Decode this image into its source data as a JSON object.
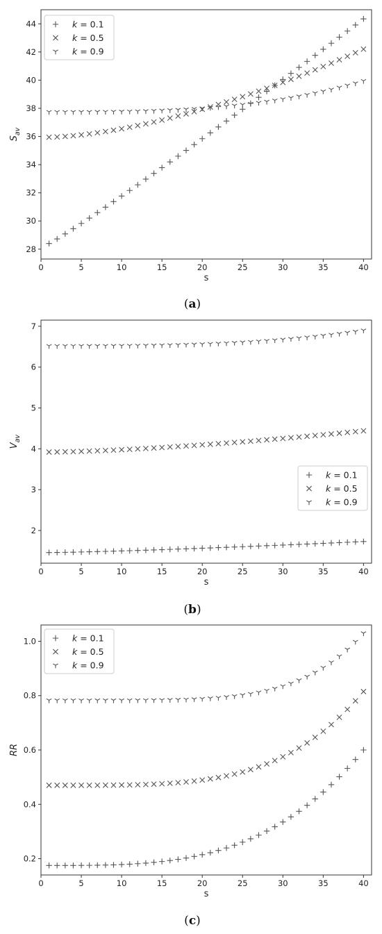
{
  "chart_data": [
    {
      "type": "scatter",
      "panel": "a",
      "caption_open": "(",
      "caption_letter": "a",
      "caption_close": ")",
      "xlabel": "s",
      "ylabel_main": "S",
      "ylabel_sub": "av",
      "xlim": [
        0,
        41
      ],
      "ylim": [
        27.3,
        45.0
      ],
      "xticks": [
        0,
        5,
        10,
        15,
        20,
        25,
        30,
        35,
        40
      ],
      "yticks": [
        28,
        30,
        32,
        34,
        36,
        38,
        40,
        42,
        44
      ],
      "yprecision": 0,
      "legend_position": "upper-left",
      "x": [
        1,
        2,
        3,
        4,
        5,
        6,
        7,
        8,
        9,
        10,
        11,
        12,
        13,
        14,
        15,
        16,
        17,
        18,
        19,
        20,
        21,
        22,
        23,
        24,
        25,
        26,
        27,
        28,
        29,
        30,
        31,
        32,
        33,
        34,
        35,
        36,
        37,
        38,
        39,
        40
      ],
      "series": [
        {
          "k_label": "k",
          "k_value": "= 0.1",
          "marker": "plus",
          "curve": {
            "start": 28.4,
            "end": 44.35,
            "power": 1.06
          }
        },
        {
          "k_label": "k",
          "k_value": "= 0.5",
          "marker": "x",
          "curve": {
            "start": 35.95,
            "end": 42.2,
            "power": 1.6
          }
        },
        {
          "k_label": "k",
          "k_value": "= 0.9",
          "marker": "tri",
          "curve": {
            "start": 37.75,
            "end": 39.95,
            "power": 3.0
          }
        }
      ]
    },
    {
      "type": "scatter",
      "panel": "b",
      "caption_open": "(",
      "caption_letter": "b",
      "caption_close": ")",
      "xlabel": "s",
      "ylabel_main": "V",
      "ylabel_sub": "av",
      "xlim": [
        0,
        41
      ],
      "ylim": [
        1.2,
        7.15
      ],
      "xticks": [
        0,
        5,
        10,
        15,
        20,
        25,
        30,
        35,
        40
      ],
      "yticks": [
        2,
        3,
        4,
        5,
        6,
        7
      ],
      "yprecision": 0,
      "legend_position": "center-right",
      "x": [
        1,
        2,
        3,
        4,
        5,
        6,
        7,
        8,
        9,
        10,
        11,
        12,
        13,
        14,
        15,
        16,
        17,
        18,
        19,
        20,
        21,
        22,
        23,
        24,
        25,
        26,
        27,
        28,
        29,
        30,
        31,
        32,
        33,
        34,
        35,
        36,
        37,
        38,
        39,
        40
      ],
      "series": [
        {
          "k_label": "k",
          "k_value": "= 0.1",
          "marker": "plus",
          "curve": {
            "start": 1.46,
            "end": 1.73,
            "power": 1.3
          }
        },
        {
          "k_label": "k",
          "k_value": "= 0.5",
          "marker": "x",
          "curve": {
            "start": 3.92,
            "end": 4.44,
            "power": 1.5
          }
        },
        {
          "k_label": "k",
          "k_value": "= 0.9",
          "marker": "tri",
          "curve": {
            "start": 6.52,
            "end": 6.9,
            "power": 3.0
          }
        }
      ]
    },
    {
      "type": "scatter",
      "panel": "c",
      "caption_open": "(",
      "caption_letter": "c",
      "caption_close": ")",
      "xlabel": "s",
      "ylabel_main": "RR",
      "ylabel_sub": "",
      "xlim": [
        0,
        41
      ],
      "ylim": [
        0.14,
        1.06
      ],
      "xticks": [
        0,
        5,
        10,
        15,
        20,
        25,
        30,
        35,
        40
      ],
      "yticks": [
        0.2,
        0.4,
        0.6,
        0.8,
        1.0
      ],
      "yprecision": 1,
      "legend_position": "upper-left",
      "x": [
        1,
        2,
        3,
        4,
        5,
        6,
        7,
        8,
        9,
        10,
        11,
        12,
        13,
        14,
        15,
        16,
        17,
        18,
        19,
        20,
        21,
        22,
        23,
        24,
        25,
        26,
        27,
        28,
        29,
        30,
        31,
        32,
        33,
        34,
        35,
        36,
        37,
        38,
        39,
        40
      ],
      "series": [
        {
          "k_label": "k",
          "k_value": "= 0.1",
          "marker": "plus",
          "curve": {
            "start": 0.175,
            "ref_x": 30,
            "ref_y": 0.335,
            "end": 0.6
          }
        },
        {
          "k_label": "k",
          "k_value": "= 0.5",
          "marker": "x",
          "curve": {
            "start": 0.47,
            "ref_x": 30,
            "ref_y": 0.575,
            "end": 0.815
          }
        },
        {
          "k_label": "k",
          "k_value": "= 0.9",
          "marker": "tri",
          "curve": {
            "start": 0.783,
            "ref_x": 30,
            "ref_y": 0.835,
            "end": 1.03
          }
        }
      ]
    }
  ]
}
